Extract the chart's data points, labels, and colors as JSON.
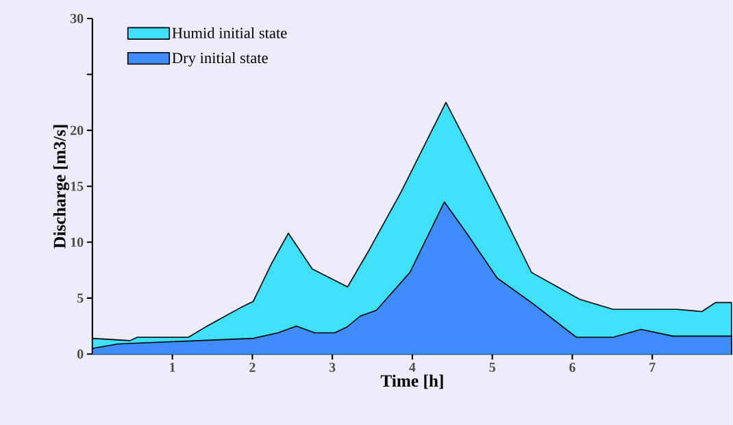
{
  "chart_data": {
    "type": "area",
    "xlabel": "Time [h]",
    "ylabel": "Discharge [m3/s]",
    "xlim": [
      0,
      8
    ],
    "xticks": [
      1,
      2,
      3,
      4,
      5,
      6,
      7
    ],
    "ylim": [
      0,
      30
    ],
    "yticks": [
      0,
      5,
      10,
      15,
      20,
      {
        "value": 25,
        "label": null
      },
      30
    ],
    "grid": false,
    "legend": "top left",
    "marker": "none",
    "line_style": "solid",
    "series": [
      {
        "name": "Humid initial state",
        "color": "#3ee0fb",
        "x": [
          0,
          0.47,
          0.56,
          1.2,
          1.41,
          1.84,
          2.01,
          2.24,
          2.45,
          2.75,
          3.19,
          3.46,
          3.86,
          4.42,
          4.68,
          5.09,
          5.49,
          6.09,
          6.51,
          7.31,
          7.62,
          7.79,
          7.99
        ],
        "values": [
          1.4,
          1.2,
          1.5,
          1.5,
          2.4,
          4.1,
          4.7,
          8.1,
          10.8,
          7.6,
          6.0,
          9.3,
          14.5,
          22.5,
          18.9,
          13.1,
          7.3,
          4.9,
          4.0,
          4.0,
          3.8,
          4.6,
          4.6
        ]
      },
      {
        "name": "Dry initial state",
        "color": "#3f8cff",
        "x": [
          0,
          0.32,
          0.98,
          2.01,
          2.32,
          2.55,
          2.78,
          3.03,
          3.18,
          3.35,
          3.55,
          3.97,
          4.4,
          4.68,
          5.06,
          5.51,
          6.05,
          6.51,
          6.86,
          7.26,
          7.99
        ],
        "values": [
          0.5,
          0.9,
          1.1,
          1.4,
          1.9,
          2.5,
          1.9,
          1.9,
          2.4,
          3.4,
          3.9,
          7.3,
          13.6,
          10.8,
          6.8,
          4.5,
          1.5,
          1.5,
          2.2,
          1.6,
          1.6
        ]
      }
    ]
  }
}
